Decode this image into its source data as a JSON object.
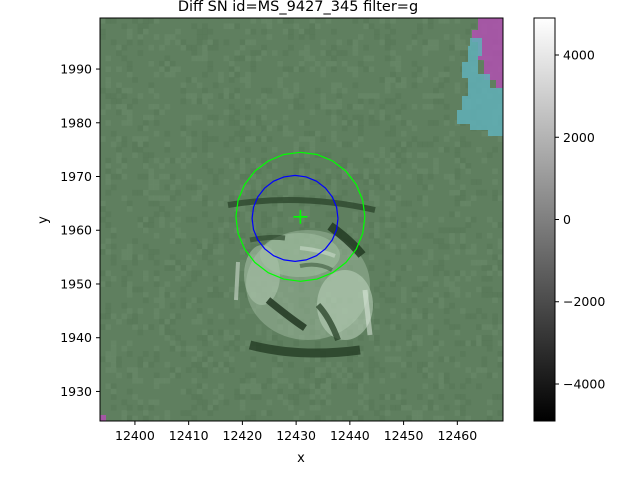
{
  "chart_data": {
    "type": "heatmap",
    "title": "Diff SN id=MS_9427_345 filter=g",
    "xlabel": "x",
    "ylabel": "y",
    "xlim": [
      12393.5,
      12468.5
    ],
    "ylim": [
      1924.5,
      1999.5
    ],
    "xticks": [
      12400,
      12410,
      12420,
      12430,
      12440,
      12450,
      12460
    ],
    "yticks": [
      1930,
      1940,
      1950,
      1960,
      1970,
      1980,
      1990
    ],
    "colorbar": {
      "cmap": "gray",
      "range": [
        -4900,
        4900
      ],
      "ticks": [
        -4000,
        -2000,
        0,
        2000,
        4000
      ]
    },
    "background_tint": "#5f7f5f",
    "mask_colors": {
      "magenta": "#b050b0",
      "cyan": "#60b0b8"
    },
    "markers": [
      {
        "type": "cross",
        "x": 12430.8,
        "y": 1962.5,
        "color": "#00ff00"
      }
    ],
    "circles": [
      {
        "center": [
          12430.8,
          1962.5
        ],
        "radius": 12.0,
        "color": "#00ff00"
      },
      {
        "center": [
          12429.8,
          1962.2
        ],
        "radius": 8.0,
        "color": "#0000ff"
      }
    ]
  }
}
